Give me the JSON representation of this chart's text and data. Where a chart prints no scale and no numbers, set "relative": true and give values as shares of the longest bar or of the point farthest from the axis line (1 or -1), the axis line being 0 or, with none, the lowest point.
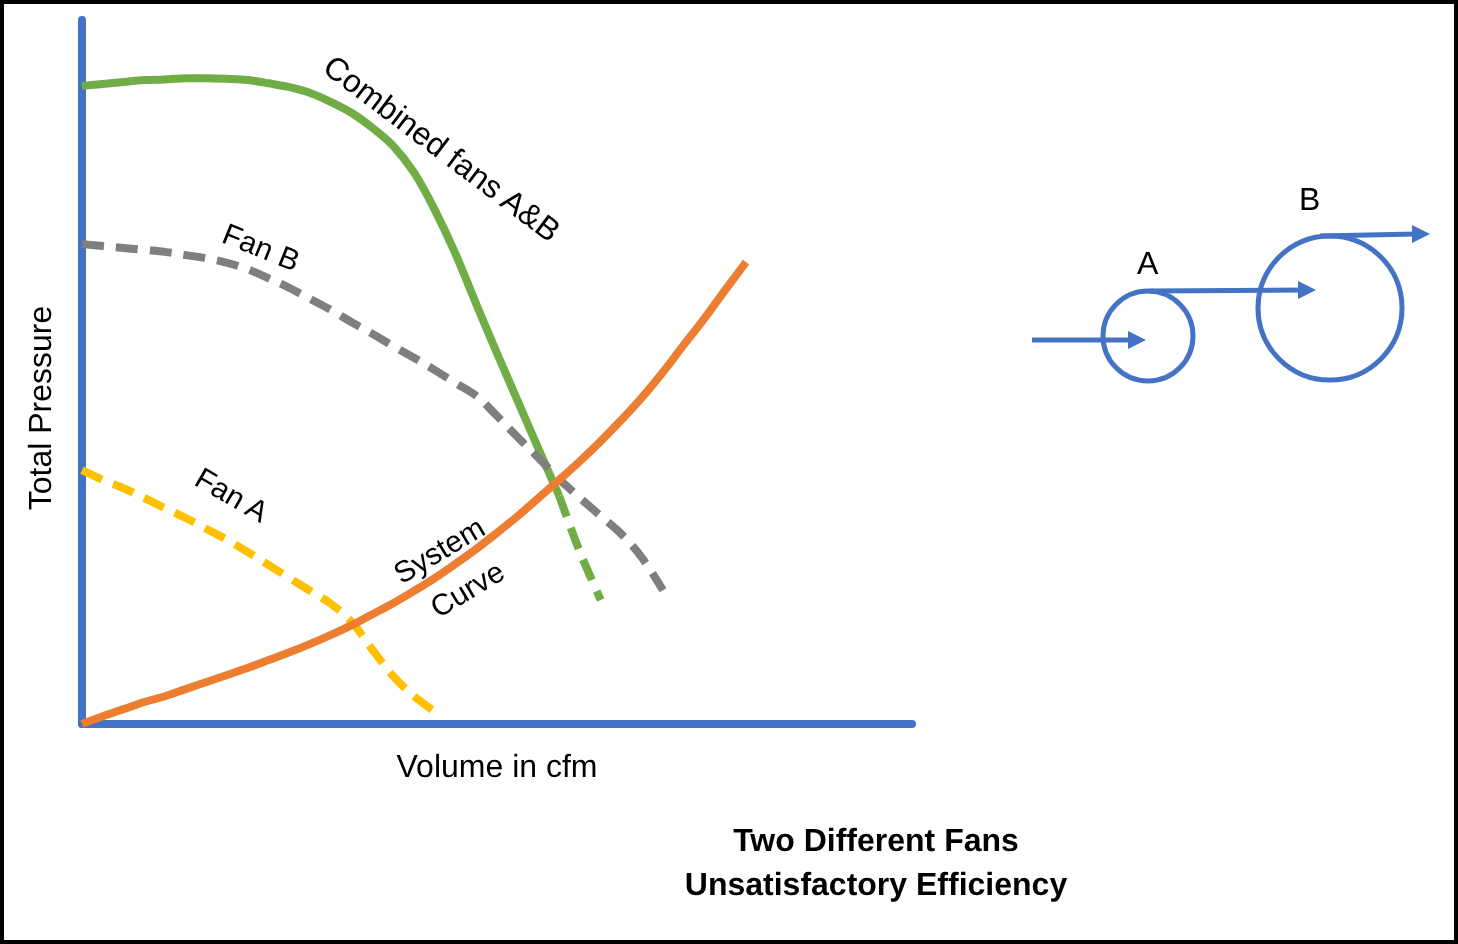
{
  "chart_data": {
    "type": "line",
    "title": "Two Different Fans",
    "subtitle": "Unsatisfactory Efficiency",
    "xlabel": "Volume in cfm",
    "ylabel": "Total Pressure",
    "relative": true,
    "marker": "none",
    "categories": [
      null,
      null,
      null,
      null,
      null,
      null,
      null,
      null,
      null,
      null,
      null,
      null,
      null,
      null,
      null,
      null,
      null,
      null,
      null,
      null,
      null,
      null,
      null,
      null,
      null,
      null,
      null,
      null,
      null,
      null,
      null,
      null,
      null,
      null,
      null,
      null,
      null,
      null,
      null,
      null,
      null
    ],
    "series": [
      {
        "name": "Combined fans A&B",
        "color": "#70ad47",
        "line_style": "solid",
        "values": [
          0.988,
          0.991,
          0.994,
          0.997,
          0.998,
          1,
          1,
          0.999,
          0.997,
          0.992,
          0.986,
          0.977,
          0.963,
          0.946,
          0.923,
          0.895,
          0.854,
          0.796,
          0.728,
          0.65,
          0.574,
          0.5,
          0.426,
          0.353,
          null,
          null,
          null,
          null,
          null,
          null,
          null,
          null,
          null,
          null,
          null,
          null,
          null,
          null,
          null,
          null,
          null
        ]
      },
      {
        "color": "#70ad47",
        "line_style": "dashed",
        "values": [
          null,
          null,
          null,
          null,
          null,
          null,
          null,
          null,
          null,
          null,
          null,
          null,
          null,
          null,
          null,
          null,
          null,
          null,
          null,
          null,
          null,
          null,
          null,
          0.353,
          0.266,
          0.192,
          null,
          null,
          null,
          null,
          null,
          null,
          null,
          null,
          null,
          null,
          null,
          null,
          null,
          null,
          null
        ]
      },
      {
        "name": "Fan B",
        "color": "#7f7f7f",
        "line_style": "dashed",
        "values": [
          0.743,
          0.74,
          0.737,
          0.734,
          0.731,
          0.726,
          0.721,
          0.714,
          0.704,
          0.69,
          0.675,
          0.658,
          0.641,
          0.622,
          0.604,
          0.585,
          0.567,
          0.548,
          0.528,
          0.508,
          0.477,
          0.444,
          0.412,
          0.379,
          0.35,
          0.322,
          0.294,
          0.257,
          0.207,
          null,
          null,
          null,
          null,
          null,
          null,
          null,
          null,
          null,
          null,
          null,
          null
        ]
      },
      {
        "name": "Fan A",
        "color": "#ffc000",
        "line_style": "dashed",
        "values": [
          0.393,
          0.378,
          0.365,
          0.35,
          0.334,
          0.319,
          0.302,
          0.285,
          0.266,
          0.246,
          0.226,
          0.206,
          0.186,
          0.158,
          0.115,
          0.074,
          0.043,
          0.019,
          null,
          null,
          null,
          null,
          null,
          null,
          null,
          null,
          null,
          null,
          null,
          null,
          null,
          null,
          null,
          null,
          null,
          null,
          null,
          null,
          null,
          null,
          null
        ]
      },
      {
        "name": "System Curve",
        "color": "#ed7d31",
        "line_style": "solid",
        "values": [
          0,
          0.012,
          0.023,
          0.034,
          0.043,
          0.054,
          0.065,
          0.076,
          0.087,
          0.099,
          0.111,
          0.124,
          0.138,
          0.153,
          0.17,
          0.187,
          0.206,
          0.226,
          0.248,
          0.271,
          0.296,
          0.322,
          0.35,
          0.378,
          0.407,
          0.438,
          0.471,
          0.506,
          0.545,
          0.587,
          0.628,
          0.672,
          0.715,
          null,
          null,
          null,
          null,
          null,
          null,
          null,
          null
        ]
      }
    ],
    "annotations": [
      "A",
      "B"
    ]
  }
}
